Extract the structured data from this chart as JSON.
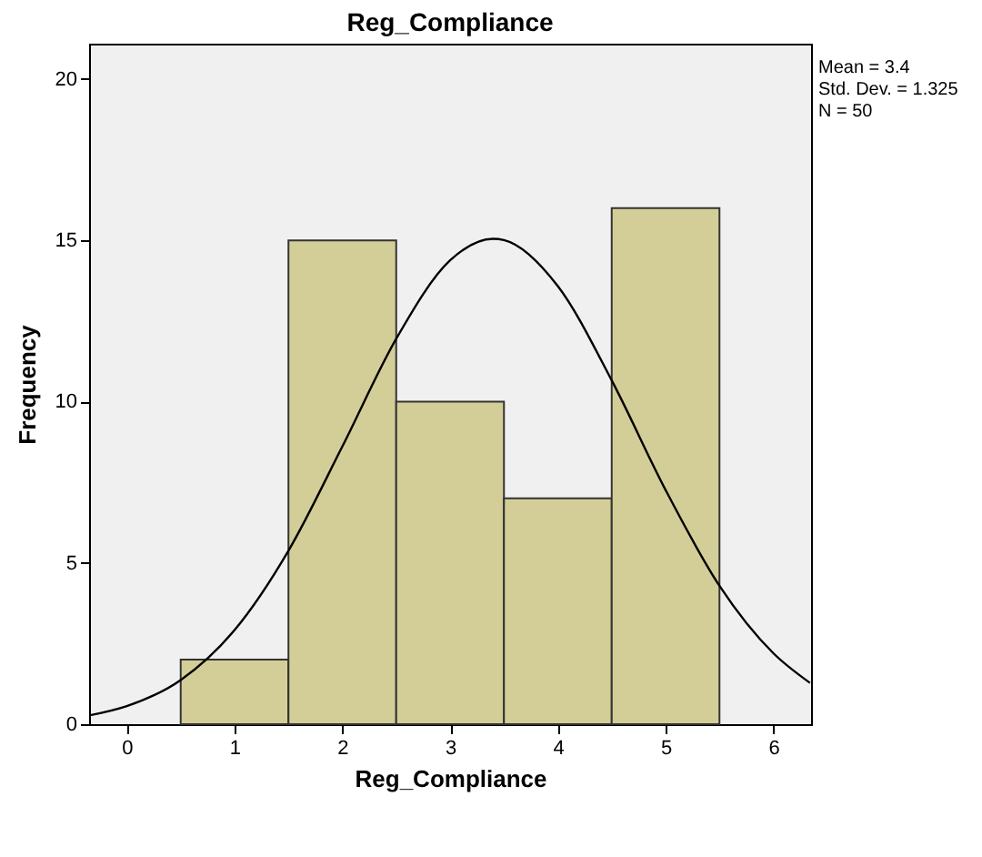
{
  "chart_data": {
    "type": "histogram",
    "title": "Reg_Compliance",
    "xlabel": "Reg_Compliance",
    "ylabel": "Frequency",
    "bins": [
      0.5,
      1.5,
      2.5,
      3.5,
      4.5,
      5.5
    ],
    "series": [
      {
        "color": "#d3ce97",
        "values": [
          2,
          15,
          10,
          7,
          16
        ]
      },
      {
        "type": "line",
        "color": "#000000",
        "x": [
          -0.35,
          0,
          0.5,
          1,
          1.5,
          2,
          2.5,
          3,
          3.4,
          3.5,
          4,
          4.5,
          5,
          5.5,
          6,
          6.34
        ],
        "values": [
          0.27,
          0.56,
          1.37,
          2.92,
          5.38,
          8.61,
          11.95,
          14.38,
          15.05,
          15.01,
          13.58,
          10.66,
          7.26,
          4.29,
          2.2,
          1.28
        ]
      }
    ],
    "xlim": [
      -0.35,
      6.35
    ],
    "xticks": [
      0,
      1,
      2,
      3,
      4,
      5,
      6
    ],
    "ylim": [
      0,
      21.1
    ],
    "yticks": [
      0,
      5,
      10,
      15,
      20
    ],
    "annotations": [
      "Mean = 3.4",
      "Std. Dev. = 1.325",
      "N = 50"
    ]
  }
}
